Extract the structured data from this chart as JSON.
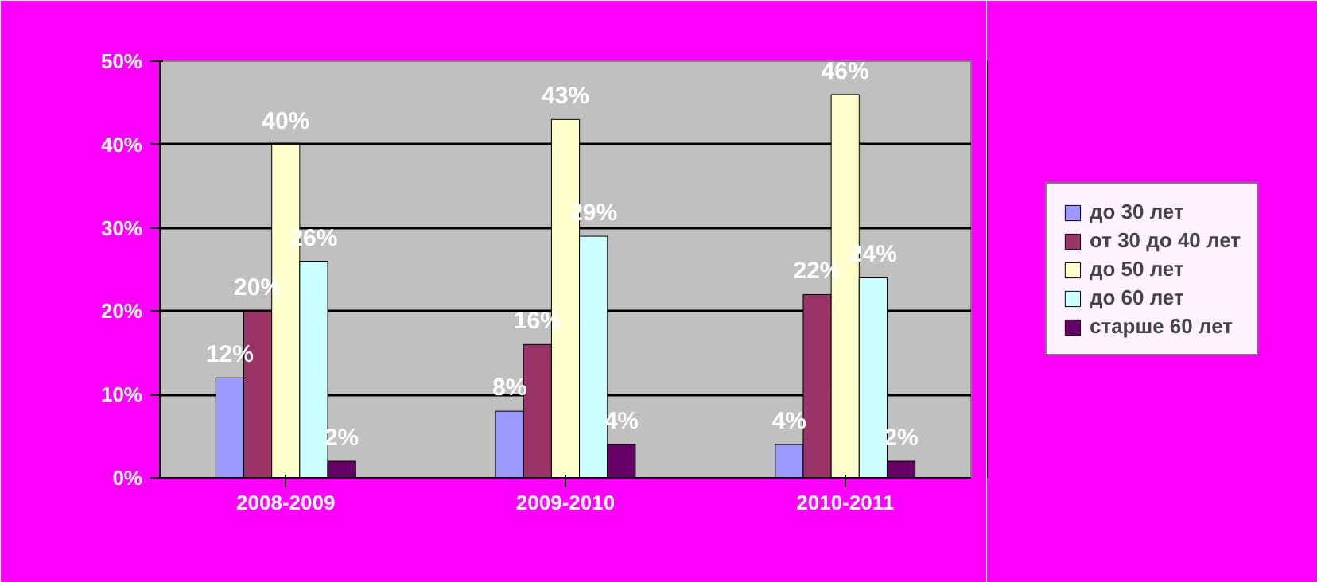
{
  "chart_data": {
    "type": "bar",
    "categories": [
      "2008-2009",
      "2009-2010",
      "2010-2011"
    ],
    "series": [
      {
        "name": "до 30 лет",
        "color": "#9999ff",
        "values": [
          12,
          8,
          4
        ],
        "value_labels": [
          "12%",
          "8%",
          "4%"
        ]
      },
      {
        "name": "от 30 до 40 лет",
        "color": "#993366",
        "values": [
          20,
          16,
          22
        ],
        "value_labels": [
          "20%",
          "16%",
          "22%"
        ]
      },
      {
        "name": "до 50 лет",
        "color": "#ffffcc",
        "values": [
          40,
          43,
          46
        ],
        "value_labels": [
          "40%",
          "43%",
          "46%"
        ]
      },
      {
        "name": "до 60 лет",
        "color": "#ccffff",
        "values": [
          26,
          29,
          24
        ],
        "value_labels": [
          "26%",
          "29%",
          "24%"
        ]
      },
      {
        "name": "старше 60 лет",
        "color": "#660066",
        "values": [
          2,
          4,
          2
        ],
        "value_labels": [
          "2%",
          "4%",
          "2%"
        ]
      }
    ],
    "ylim": [
      0,
      50
    ],
    "yticks": [
      {
        "value": 0,
        "label": "0%"
      },
      {
        "value": 10,
        "label": "10%"
      },
      {
        "value": 20,
        "label": "20%"
      },
      {
        "value": 30,
        "label": "30%"
      },
      {
        "value": 40,
        "label": "40%"
      },
      {
        "value": 50,
        "label": "50%"
      }
    ],
    "grid": "y",
    "legend": "right"
  }
}
